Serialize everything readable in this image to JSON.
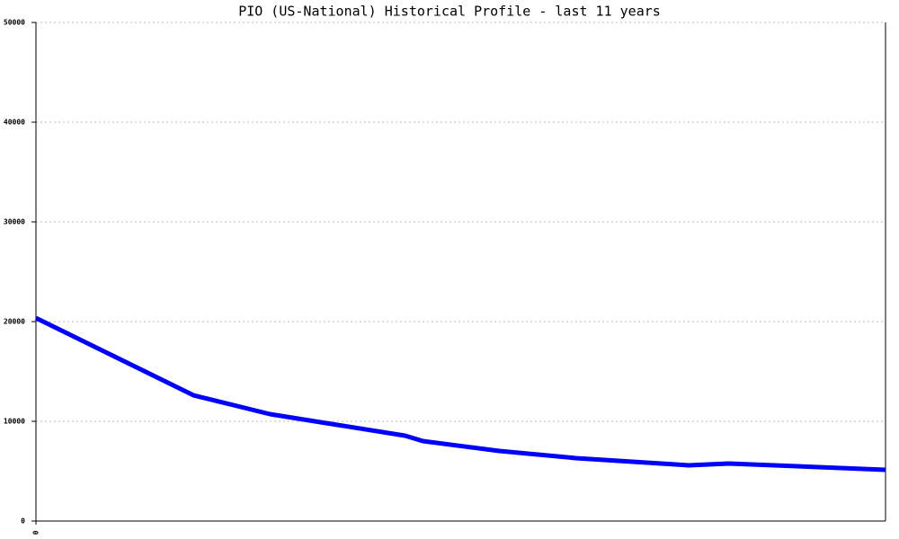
{
  "chart_data": {
    "type": "line",
    "title": "PIO (US-National) Historical Profile - last 11 years",
    "x": [
      0,
      2.04,
      3.03,
      4.78,
      5.01,
      6.0,
      6.99,
      8.45,
      8.97,
      11
    ],
    "series": [
      {
        "color": "#0000ff",
        "values": [
          20360,
          12610,
          10720,
          8560,
          8020,
          7030,
          6310,
          5590,
          5770,
          5140
        ]
      }
    ],
    "xlim": [
      0,
      11
    ],
    "xticks": [
      0
    ],
    "ylim": [
      0,
      50000
    ],
    "yticks": [
      0,
      10000,
      20000,
      30000,
      40000,
      50000
    ],
    "grid": true
  }
}
